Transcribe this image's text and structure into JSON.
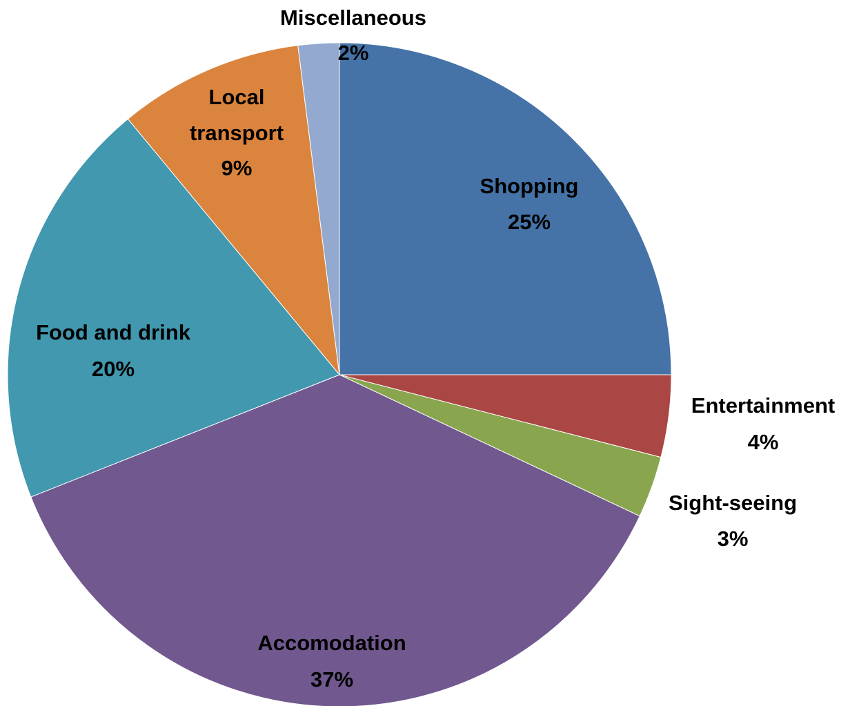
{
  "chart_data": {
    "type": "pie",
    "categories": [
      "Shopping",
      "Entertainment",
      "Sight-seeing",
      "Accomodation",
      "Food and drink",
      "Local transport",
      "Miscellaneous"
    ],
    "values": [
      25,
      4,
      3,
      37,
      20,
      9,
      2
    ],
    "value_labels": [
      "25%",
      "4%",
      "3%",
      "37%",
      "20%",
      "9%",
      "2%"
    ],
    "colors": [
      "#4572a7",
      "#aa4643",
      "#89a54e",
      "#71588f",
      "#4198af",
      "#db843d",
      "#93a9cf"
    ]
  }
}
